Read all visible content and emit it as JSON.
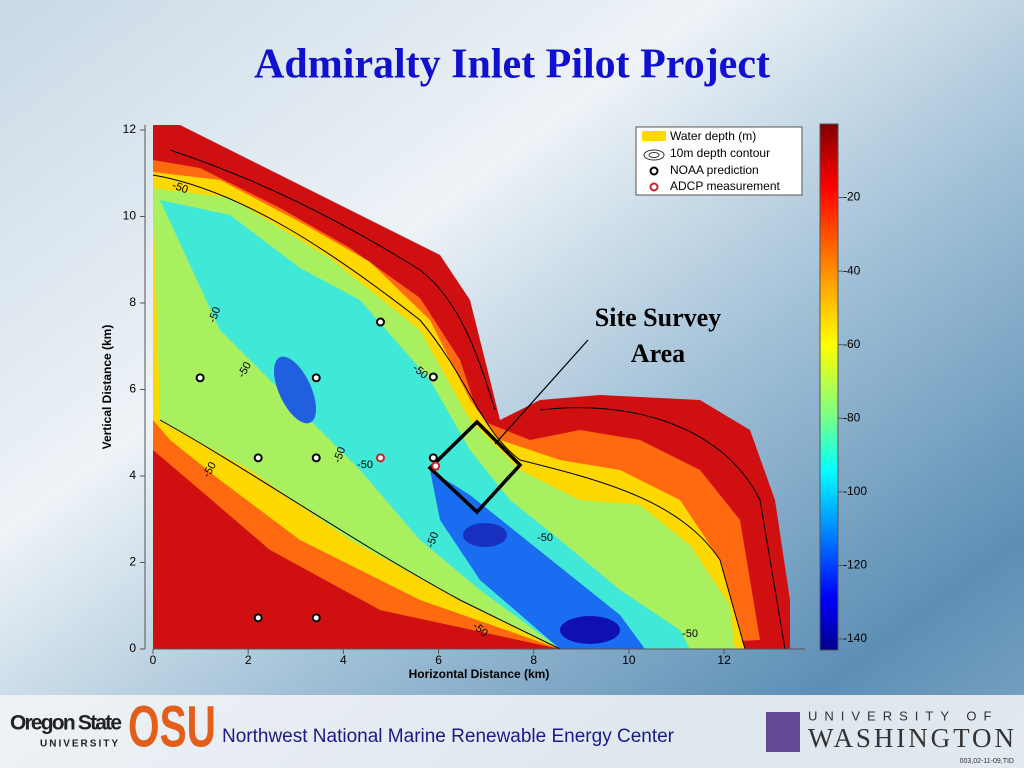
{
  "slide_title": "Admiralty Inlet Pilot Project",
  "chart_data": {
    "type": "contour",
    "xlabel": "Horizontal Distance (km)",
    "ylabel": "Vertical Distance (km)",
    "xlim": [
      0,
      13.7
    ],
    "ylim": [
      0,
      12
    ],
    "xticks": [
      0,
      2,
      4,
      6,
      8,
      10,
      12
    ],
    "yticks": [
      0,
      2,
      4,
      6,
      8,
      10,
      12
    ],
    "clim": [
      -143,
      0
    ],
    "cticks": [
      -20,
      -40,
      -60,
      -80,
      -100,
      -120,
      -140
    ],
    "contour_labels": [
      -50,
      -50,
      -50,
      -50,
      -50,
      -50,
      -50,
      -50,
      -50,
      -50,
      -50
    ],
    "legend": [
      "Water depth (m)",
      "10m depth contour"
    ],
    "series": [
      {
        "name": "NOAA prediction",
        "color": "#000000",
        "x": [
          0.99,
          3.43,
          5.89,
          2.21,
          3.43,
          5.89,
          2.21,
          3.43,
          4.78
        ],
        "y": [
          6.27,
          6.27,
          6.29,
          4.42,
          4.42,
          4.42,
          0.72,
          0.72,
          7.56
        ]
      },
      {
        "name": "ADCP measurement",
        "color": "#cc2222",
        "x": [
          4.78,
          5.94
        ],
        "y": [
          4.42,
          4.23
        ]
      }
    ],
    "annotation": [
      "Site Survey",
      "Area"
    ]
  },
  "footer": {
    "osu_name": "Oregon State",
    "osu_sub": "UNIVERSITY",
    "osu_logo": "OSU",
    "center": "Northwest National Marine Renewable Energy Center",
    "uw_top": "UNIVERSITY OF",
    "uw_name": "WASHINGTON",
    "code": "003,02-11-09,TID"
  }
}
